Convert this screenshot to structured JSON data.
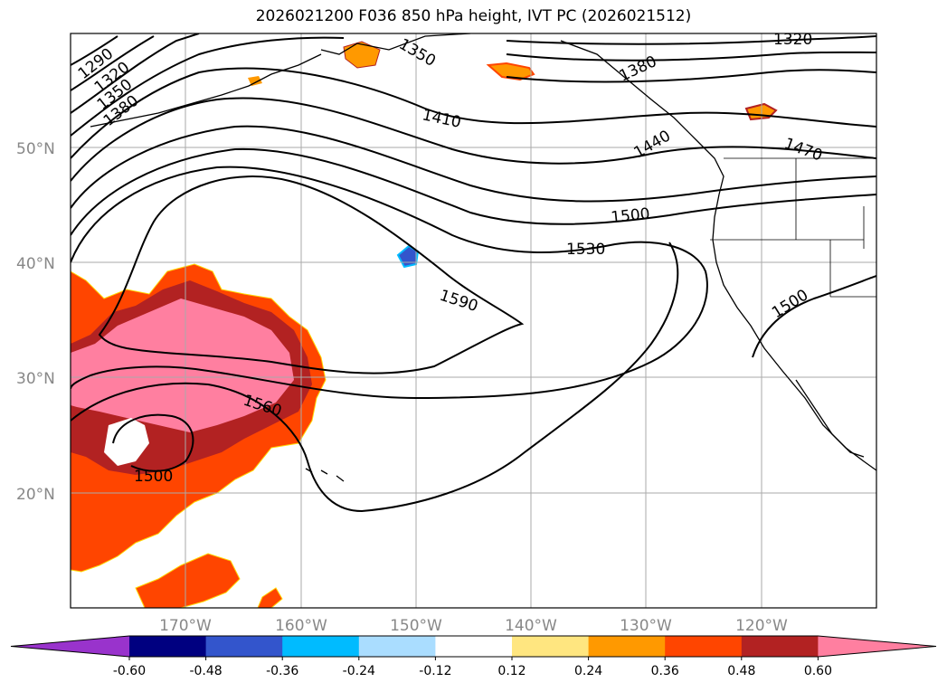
{
  "title": "2026021200 F036 850 hPa height, IVT PC (2026021512)",
  "map": {
    "lat_labels": [
      "50°N",
      "40°N",
      "30°N",
      "20°N"
    ],
    "lon_labels": [
      "170°W",
      "160°W",
      "150°W",
      "140°W",
      "130°W",
      "120°W"
    ],
    "contour_labels": [
      "1290",
      "1320",
      "1350",
      "1380",
      "1410",
      "1440",
      "1470",
      "1500",
      "1530",
      "1560",
      "1590",
      "1500",
      "1500",
      "1320",
      "1380",
      "1350"
    ]
  },
  "colorbar": {
    "ticks": [
      "-0.60",
      "-0.48",
      "-0.36",
      "-0.24",
      "-0.12",
      "0.12",
      "0.24",
      "0.36",
      "0.48",
      "0.60"
    ],
    "colors": [
      "#9933cc",
      "#000080",
      "#3355cc",
      "#00bbff",
      "#aaddff",
      "#ffffff",
      "#ffe680",
      "#ff9900",
      "#ff4500",
      "#b22222",
      "#ff7fa0"
    ]
  },
  "colors": {
    "grid": "#aaaaaa",
    "contour": "#000000",
    "coast": "#000000"
  }
}
